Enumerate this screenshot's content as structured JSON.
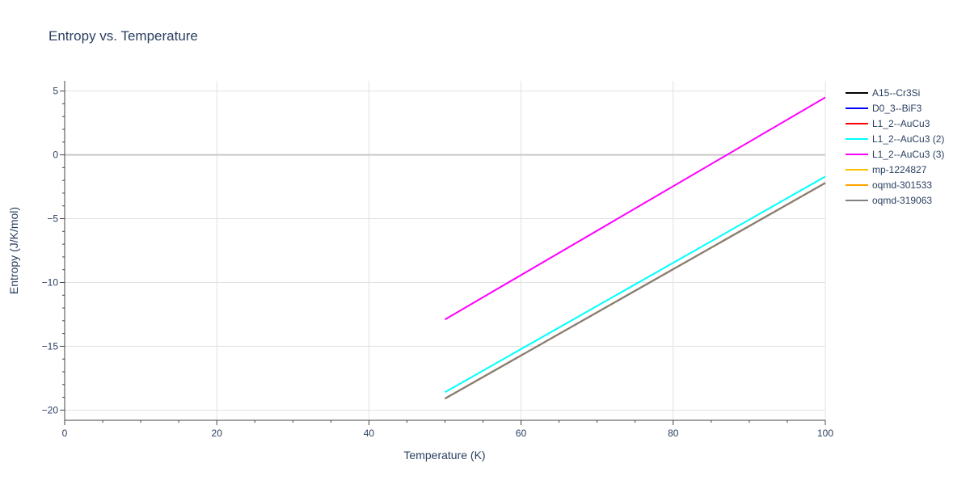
{
  "chart_data": {
    "type": "line",
    "title": "Entropy vs. Temperature",
    "xlabel": "Temperature (K)",
    "ylabel": "Entropy (J/K/mol)",
    "xlim": [
      0,
      100
    ],
    "ylim": [
      -20.8,
      5.8
    ],
    "x_ticks": [
      0,
      20,
      40,
      60,
      80,
      100
    ],
    "x_tick_labels": [
      "0",
      "20",
      "40",
      "60",
      "80",
      "100"
    ],
    "y_ticks": [
      5,
      0,
      -5,
      -10,
      -15,
      -20
    ],
    "y_tick_labels": [
      "5",
      "0",
      "−5",
      "−10",
      "−15",
      "−20"
    ],
    "grid": true,
    "legend_position": "top-right",
    "series": [
      {
        "name": "A15--Cr3Si",
        "color": "#000000",
        "x": [
          50,
          100
        ],
        "y": [
          -19.1,
          -2.2
        ]
      },
      {
        "name": "D0_3--BiF3",
        "color": "#0000ff",
        "x": [
          50,
          100
        ],
        "y": [
          -19.1,
          -2.2
        ]
      },
      {
        "name": "L1_2--AuCu3",
        "color": "#ff0000",
        "x": [
          50,
          100
        ],
        "y": [
          -19.1,
          -2.2
        ]
      },
      {
        "name": "L1_2--AuCu3 (2)",
        "color": "#00ffff",
        "x": [
          50,
          100
        ],
        "y": [
          -18.6,
          -1.7
        ]
      },
      {
        "name": "L1_2--AuCu3 (3)",
        "color": "#ff00ff",
        "x": [
          50,
          100
        ],
        "y": [
          -12.9,
          4.5
        ]
      },
      {
        "name": "mp-1224827",
        "color": "#ffc000",
        "x": [
          50,
          100
        ],
        "y": [
          -19.1,
          -2.2
        ]
      },
      {
        "name": "oqmd-301533",
        "color": "#ffa500",
        "x": [
          50,
          100
        ],
        "y": [
          -19.1,
          -2.2
        ]
      },
      {
        "name": "oqmd-319063",
        "color": "#808080",
        "x": [
          50,
          100
        ],
        "y": [
          -19.1,
          -2.2
        ]
      }
    ]
  }
}
